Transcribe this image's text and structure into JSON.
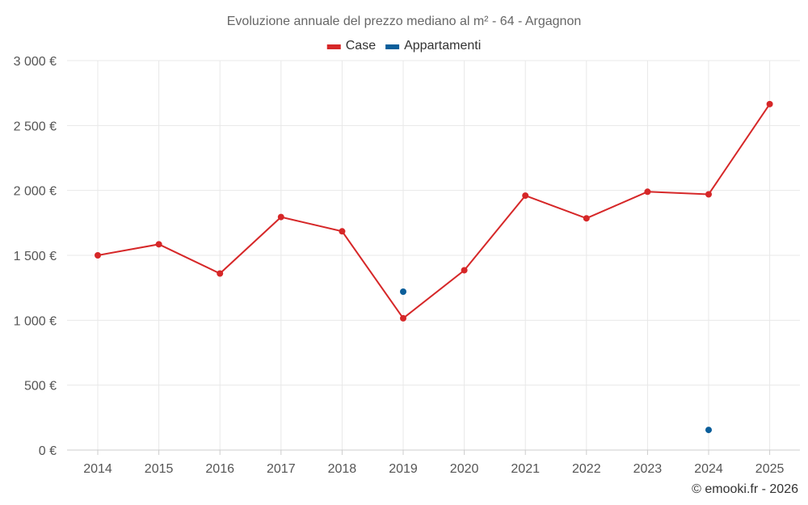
{
  "chart_data": {
    "type": "line",
    "title": "Evoluzione annuale del prezzo mediano al m² - 64 - Argagnon",
    "x": [
      "2014",
      "2015",
      "2016",
      "2017",
      "2018",
      "2019",
      "2020",
      "2021",
      "2022",
      "2023",
      "2024",
      "2025"
    ],
    "y_ticks": [
      "0 €",
      "500 €",
      "1 000 €",
      "1 500 €",
      "2 000 €",
      "2 500 €",
      "3 000 €"
    ],
    "ylim": [
      0,
      3000
    ],
    "grid": true,
    "legend_position": "top-center",
    "series": [
      {
        "name": "Case",
        "color": "#d62728",
        "values": [
          1500,
          1585,
          1360,
          1795,
          1685,
          1015,
          1385,
          1960,
          1785,
          1990,
          1970,
          2665
        ]
      },
      {
        "name": "Appartamenti",
        "color": "#0b5e9a",
        "values": [
          null,
          null,
          null,
          null,
          null,
          1220,
          null,
          null,
          null,
          null,
          155,
          null
        ]
      }
    ]
  },
  "credit": "© emooki.fr - 2026"
}
